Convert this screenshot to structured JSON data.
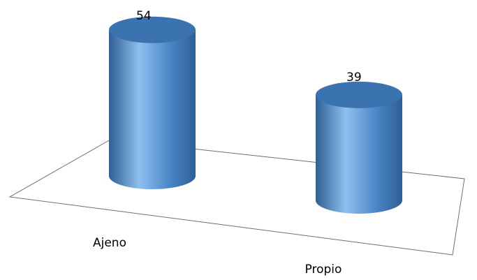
{
  "chart_data": {
    "type": "bar",
    "style": "3d-cylinder",
    "categories": [
      "Ajeno",
      "Propio"
    ],
    "values": [
      54,
      39
    ],
    "data_labels": [
      "54",
      "39"
    ],
    "title": "",
    "xlabel": "",
    "ylabel": "",
    "ylim": [
      0,
      60
    ],
    "grid": false,
    "legend": "none",
    "colors": {
      "bar": "#4a86c8",
      "bar_light": "#8ec0ee",
      "bar_dark": "#2f5f94",
      "top": "#3a73b0",
      "floor_line": "#6e6e6e"
    }
  }
}
